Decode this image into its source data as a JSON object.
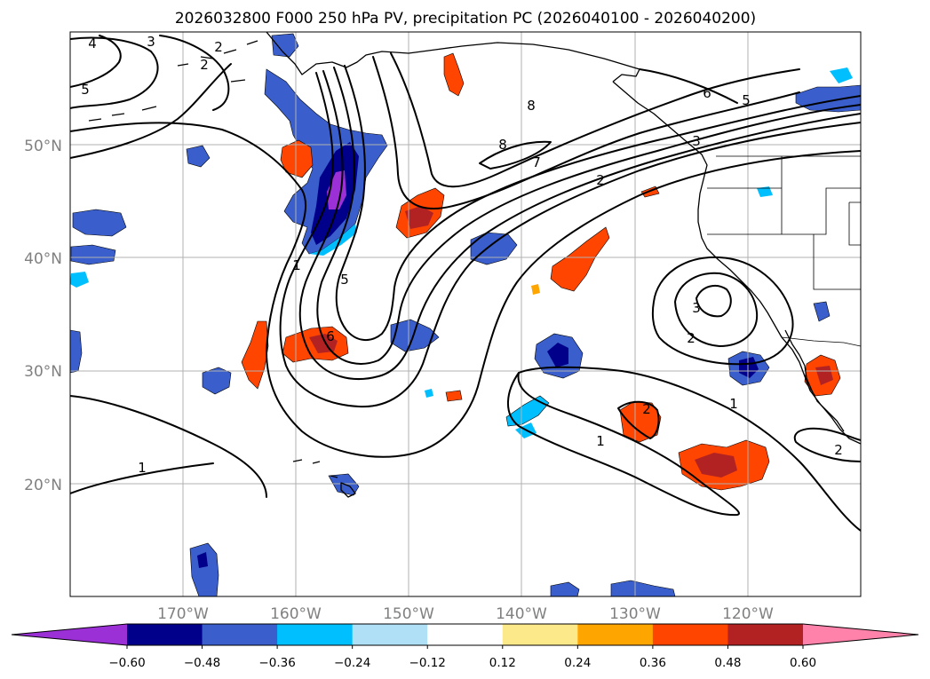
{
  "title": "2026032800 F000 250 hPa PV, precipitation PC (2026040100 - 2026040200)",
  "map": {
    "lon_range": [
      -180,
      -110
    ],
    "lat_range": [
      10,
      60
    ],
    "lon_ticks": [
      "170°W",
      "160°W",
      "150°W",
      "140°W",
      "130°W",
      "120°W"
    ],
    "lat_ticks": [
      "20°N",
      "30°N",
      "40°N",
      "50°N"
    ],
    "grid": true
  },
  "colorbar": {
    "extend": "both",
    "tick_labels": [
      "−0.60",
      "−0.48",
      "−0.36",
      "−0.24",
      "−0.12",
      "0.12",
      "0.24",
      "0.36",
      "0.48",
      "0.60"
    ],
    "colors": [
      "#9b30d6",
      "#00008b",
      "#3a5fcd",
      "#00bfff",
      "#b0e0f6",
      "#ffffff",
      "#fce98a",
      "#ffa500",
      "#ff4500",
      "#b22222",
      "#ff82ab"
    ]
  },
  "pv_contour_labels": [
    "4",
    "3",
    "2",
    "2",
    "5",
    "8",
    "8",
    "7",
    "2",
    "6",
    "5",
    "3",
    "1",
    "5",
    "6",
    "3",
    "2",
    "1",
    "1",
    "2",
    "1",
    "2"
  ]
}
